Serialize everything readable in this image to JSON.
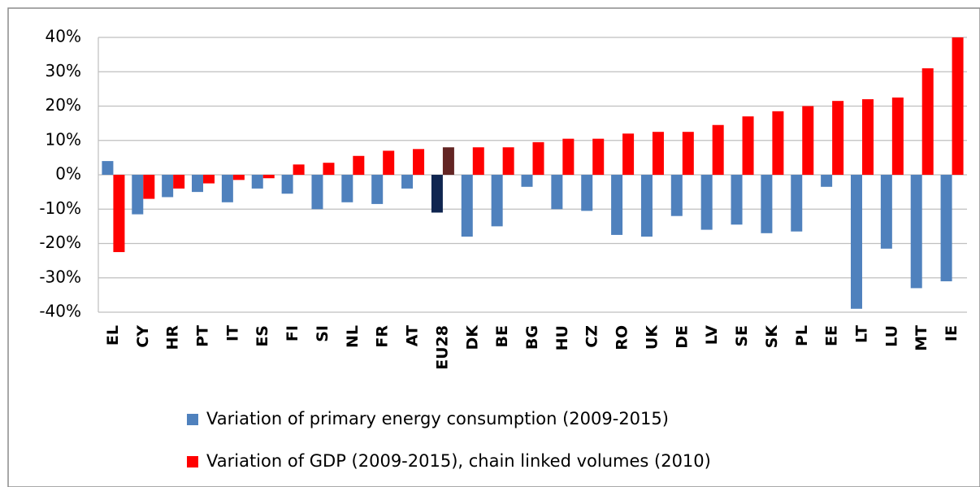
{
  "chart_data": {
    "type": "bar",
    "categories": [
      "EL",
      "CY",
      "HR",
      "PT",
      "IT",
      "ES",
      "FI",
      "SI",
      "NL",
      "FR",
      "AT",
      "EU28",
      "DK",
      "BE",
      "BG",
      "HU",
      "CZ",
      "RO",
      "UK",
      "DE",
      "LV",
      "SE",
      "SK",
      "PL",
      "EE",
      "LT",
      "LU",
      "MT",
      "IE"
    ],
    "series": [
      {
        "name": "Variation of primary energy consumption (2009-2015)",
        "color": "#4f81bd",
        "highlight_color": "#0f2550",
        "values": [
          4,
          -11.5,
          -6.5,
          -5,
          -8,
          -4,
          -5.5,
          -10,
          -8,
          -8.5,
          -4,
          -11,
          -18,
          -15,
          -3.5,
          -10,
          -10.5,
          -17.5,
          -18,
          -12,
          -16,
          -14.5,
          -17,
          -16.5,
          -3.5,
          -39,
          -21.5,
          -33,
          -31
        ]
      },
      {
        "name": "Variation of GDP (2009-2015), chain linked volumes (2010)",
        "color": "#ff0000",
        "highlight_color": "#632523",
        "values": [
          -22.5,
          -7,
          -4,
          -2.5,
          -1.5,
          -1,
          3,
          3.5,
          5.5,
          7,
          7.5,
          8,
          8,
          8,
          9.5,
          10.5,
          10.5,
          12,
          12.5,
          12.5,
          14.5,
          17,
          18.5,
          20,
          21.5,
          22,
          22.5,
          31,
          40
        ]
      }
    ],
    "highlight_category": "EU28",
    "ylim": [
      -40,
      40
    ],
    "yticks": [
      {
        "value": -40,
        "label": "-40%"
      },
      {
        "value": -30,
        "label": "-30%"
      },
      {
        "value": -20,
        "label": "-20%"
      },
      {
        "value": -10,
        "label": "-10%"
      },
      {
        "value": 0,
        "label": "0%"
      },
      {
        "value": 10,
        "label": "10%"
      },
      {
        "value": 20,
        "label": "20%"
      },
      {
        "value": 30,
        "label": "30%"
      },
      {
        "value": 40,
        "label": "40%"
      }
    ],
    "grid": true
  }
}
